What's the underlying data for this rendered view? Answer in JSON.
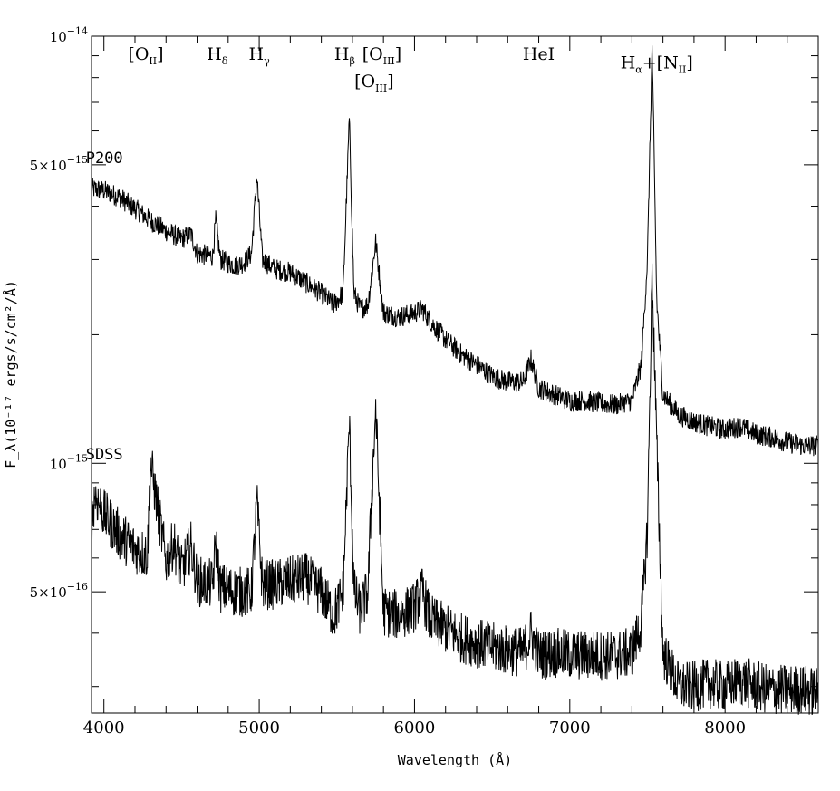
{
  "chart_data": {
    "type": "line",
    "title": "",
    "xlabel": "Wavelength (Å)",
    "ylabel": "F_λ(10⁻¹⁷ ergs/s/cm²/Å)",
    "xlim": [
      3920,
      8600
    ],
    "ylim": [
      2.6e-16,
      1e-14
    ],
    "yscale": "log",
    "x_ticks": [
      4000,
      5000,
      6000,
      7000,
      8000
    ],
    "y_tick_labels": [
      {
        "value": 1e-14,
        "base": "10",
        "exp": "−14"
      },
      {
        "value": 5e-15,
        "base": "5×10",
        "exp": "−15"
      },
      {
        "value": 1e-15,
        "base": "10",
        "exp": "−15"
      },
      {
        "value": 5e-16,
        "base": "5×10",
        "exp": "−16"
      }
    ],
    "series": [
      {
        "name": "P200",
        "x": [
          3920,
          4000,
          4100,
          4200,
          4300,
          4400,
          4500,
          4560,
          4600,
          4700,
          4720,
          4750,
          4850,
          4900,
          4950,
          4985,
          5020,
          5100,
          5200,
          5300,
          5400,
          5480,
          5540,
          5580,
          5610,
          5650,
          5700,
          5750,
          5800,
          5900,
          6000,
          6050,
          6100,
          6200,
          6300,
          6400,
          6500,
          6600,
          6700,
          6750,
          6800,
          6900,
          7000,
          7100,
          7200,
          7300,
          7400,
          7460,
          7500,
          7530,
          7560,
          7600,
          7700,
          7800,
          7900,
          8000,
          8100,
          8200,
          8300,
          8400,
          8500,
          8600
        ],
        "y": [
          4.4e-15,
          4.35e-15,
          4.2e-15,
          3.95e-15,
          3.7e-15,
          3.5e-15,
          3.35e-15,
          3.45e-15,
          3.1e-15,
          3.05e-15,
          3.7e-15,
          3e-15,
          2.9e-15,
          2.95e-15,
          3.1e-15,
          4.7e-15,
          3e-15,
          2.85e-15,
          2.8e-15,
          2.65e-15,
          2.5e-15,
          2.35e-15,
          2.5e-15,
          6.4e-15,
          2.5e-15,
          2.3e-15,
          2.35e-15,
          3.3e-15,
          2.25e-15,
          2.2e-15,
          2.25e-15,
          2.3e-15,
          2.15e-15,
          1.95e-15,
          1.8e-15,
          1.7e-15,
          1.6e-15,
          1.55e-15,
          1.55e-15,
          1.75e-15,
          1.5e-15,
          1.45e-15,
          1.4e-15,
          1.4e-15,
          1.38e-15,
          1.37e-15,
          1.4e-15,
          1.7e-15,
          3e-15,
          9.4e-15,
          2.4e-15,
          1.45e-15,
          1.3e-15,
          1.25e-15,
          1.22e-15,
          1.2e-15,
          1.22e-15,
          1.17e-15,
          1.15e-15,
          1.12e-15,
          1.1e-15,
          1.1e-15
        ]
      },
      {
        "name": "SDSS",
        "x": [
          3920,
          3940,
          4000,
          4100,
          4200,
          4280,
          4300,
          4400,
          4450,
          4500,
          4560,
          4600,
          4700,
          4720,
          4750,
          4850,
          4950,
          4985,
          5020,
          5100,
          5200,
          5300,
          5400,
          5480,
          5540,
          5580,
          5610,
          5650,
          5700,
          5720,
          5750,
          5800,
          5900,
          6000,
          6050,
          6100,
          6200,
          6300,
          6400,
          6500,
          6600,
          6700,
          6750,
          6800,
          6900,
          7000,
          7100,
          7200,
          7300,
          7400,
          7460,
          7500,
          7530,
          7560,
          7600,
          7700,
          7800,
          7900,
          8000,
          8100,
          8200,
          8300,
          8400,
          8500,
          8600
        ],
        "y": [
          7e-16,
          8.5e-16,
          7.6e-16,
          6.8e-16,
          6.3e-16,
          6.1e-16,
          1e-15,
          5.9e-16,
          6.5e-16,
          5.6e-16,
          6.4e-16,
          5.3e-16,
          5.2e-16,
          6.5e-16,
          5.1e-16,
          5e-16,
          5e-16,
          8.1e-16,
          5.2e-16,
          5.2e-16,
          5.3e-16,
          5.4e-16,
          5e-16,
          4.4e-16,
          5e-16,
          1.25e-15,
          5e-16,
          4.5e-16,
          5e-16,
          7.8e-16,
          1.35e-15,
          4.5e-16,
          4.4e-16,
          4.6e-16,
          5e-16,
          4.3e-16,
          4.1e-16,
          3.9e-16,
          3.8e-16,
          3.7e-16,
          3.65e-16,
          3.6e-16,
          4e-16,
          3.55e-16,
          3.6e-16,
          3.55e-16,
          3.55e-16,
          3.55e-16,
          3.55e-16,
          3.6e-16,
          4.2e-16,
          7e-16,
          2.8e-15,
          1.1e-15,
          3.6e-16,
          3e-16,
          3e-16,
          3.05e-16,
          3e-16,
          3.1e-16,
          3e-16,
          2.95e-16,
          2.95e-16,
          2.95e-16,
          2.9e-16
        ]
      }
    ],
    "series_labels": [
      {
        "text": "P200",
        "x": 4000,
        "y": 5.05e-15
      },
      {
        "text": "SDSS",
        "x": 4000,
        "y": 1.02e-15
      }
    ],
    "annotations": [
      {
        "base": "[O",
        "sub": "II",
        "suffix": "]",
        "x": 4270,
        "y": 8.8e-15
      },
      {
        "base": "H",
        "sub": "δ",
        "suffix": "",
        "x": 4730,
        "y": 8.8e-15
      },
      {
        "base": "H",
        "sub": "γ",
        "suffix": "",
        "x": 5000,
        "y": 8.8e-15
      },
      {
        "base": "H",
        "sub": "β",
        "suffix": "",
        "x": 5550,
        "y": 8.8e-15
      },
      {
        "base": "[O",
        "sub": "III",
        "suffix": "]",
        "x": 5790,
        "y": 8.8e-15
      },
      {
        "base": "[O",
        "sub": "III",
        "suffix": "]",
        "x": 5740,
        "y": 7.6e-15
      },
      {
        "base": "HeI",
        "sub": "",
        "suffix": "",
        "x": 6800,
        "y": 8.8e-15
      },
      {
        "base": "H",
        "sub": "α",
        "suffix": "+[N",
        "sub2": "II",
        "suffix2": "]",
        "x": 7560,
        "y": 8.4e-15
      }
    ],
    "grid": false,
    "legend": "none"
  }
}
